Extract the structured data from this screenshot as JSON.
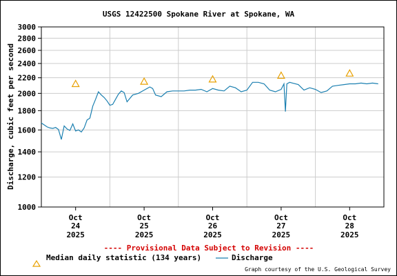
{
  "chart_data": {
    "type": "line",
    "title": "USGS 12422500 Spokane River at Spokane, WA",
    "ylabel": "Discharge, cubic feet per second",
    "xlabel": "",
    "y_scale": "log",
    "ylim": [
      1000,
      3000
    ],
    "y_ticks": [
      "3000",
      "2800",
      "2600",
      "2400",
      "2200",
      "2000",
      "1800",
      "1600",
      "1400",
      "1200",
      "1000"
    ],
    "x_range": [
      "2025-10-23 12:00",
      "2025-10-28 12:00"
    ],
    "x_ticks": [
      {
        "month": "Oct",
        "day": "24",
        "year": "2025"
      },
      {
        "month": "Oct",
        "day": "25",
        "year": "2025"
      },
      {
        "month": "Oct",
        "day": "26",
        "year": "2025"
      },
      {
        "month": "Oct",
        "day": "27",
        "year": "2025"
      },
      {
        "month": "Oct",
        "day": "28",
        "year": "2025"
      }
    ],
    "grid": true,
    "provisional_notice": "---- Provisional Data Subject to Revision ----",
    "credit": "Graph courtesy of the U.S. Geological Survey",
    "colors": {
      "discharge": "#1a7fb0",
      "median": "#e8a000",
      "grid": "#cccccc",
      "provisional": "#d40000"
    },
    "series": [
      {
        "name": "Discharge",
        "x": [
          "2025-10-23 12:00",
          "2025-10-23 13:00",
          "2025-10-23 14:00",
          "2025-10-23 15:00",
          "2025-10-23 16:00",
          "2025-10-23 17:00",
          "2025-10-23 18:00",
          "2025-10-23 19:00",
          "2025-10-23 20:00",
          "2025-10-23 21:00",
          "2025-10-23 22:00",
          "2025-10-23 23:00",
          "2025-10-24 00:00",
          "2025-10-24 01:00",
          "2025-10-24 02:00",
          "2025-10-24 03:00",
          "2025-10-24 04:00",
          "2025-10-24 05:00",
          "2025-10-24 06:00",
          "2025-10-24 07:00",
          "2025-10-24 08:00",
          "2025-10-24 09:00",
          "2025-10-24 10:00",
          "2025-10-24 11:00",
          "2025-10-24 12:00",
          "2025-10-24 13:00",
          "2025-10-24 14:00",
          "2025-10-24 15:00",
          "2025-10-24 16:00",
          "2025-10-24 17:00",
          "2025-10-24 18:00",
          "2025-10-24 20:00",
          "2025-10-24 22:00",
          "2025-10-25 00:00",
          "2025-10-25 02:00",
          "2025-10-25 03:00",
          "2025-10-25 04:00",
          "2025-10-25 06:00",
          "2025-10-25 08:00",
          "2025-10-25 10:00",
          "2025-10-25 12:00",
          "2025-10-25 13:00",
          "2025-10-25 14:00",
          "2025-10-25 16:00",
          "2025-10-25 18:00",
          "2025-10-25 20:00",
          "2025-10-25 22:00",
          "2025-10-26 00:00",
          "2025-10-26 02:00",
          "2025-10-26 04:00",
          "2025-10-26 06:00",
          "2025-10-26 08:00",
          "2025-10-26 10:00",
          "2025-10-26 12:00",
          "2025-10-26 14:00",
          "2025-10-26 16:00",
          "2025-10-26 18:00",
          "2025-10-26 20:00",
          "2025-10-26 22:00",
          "2025-10-27 00:00",
          "2025-10-27 01:00",
          "2025-10-27 01:30",
          "2025-10-27 02:00",
          "2025-10-27 03:00",
          "2025-10-27 04:00",
          "2025-10-27 06:00",
          "2025-10-27 08:00",
          "2025-10-27 10:00",
          "2025-10-27 12:00",
          "2025-10-27 14:00",
          "2025-10-27 16:00",
          "2025-10-27 18:00",
          "2025-10-27 20:00",
          "2025-10-27 22:00",
          "2025-10-28 00:00",
          "2025-10-28 02:00",
          "2025-10-28 04:00",
          "2025-10-28 06:00",
          "2025-10-28 08:00",
          "2025-10-28 10:00"
        ],
        "values": [
          1670,
          1650,
          1630,
          1620,
          1615,
          1625,
          1605,
          1510,
          1640,
          1610,
          1595,
          1660,
          1590,
          1600,
          1580,
          1620,
          1700,
          1720,
          1850,
          1930,
          2020,
          1980,
          1950,
          1910,
          1860,
          1870,
          1930,
          1990,
          2030,
          2010,
          1900,
          1980,
          2000,
          2040,
          2080,
          2060,
          1980,
          1960,
          2020,
          2030,
          2030,
          2030,
          2030,
          2040,
          2040,
          2050,
          2020,
          2060,
          2040,
          2030,
          2090,
          2070,
          2020,
          2040,
          2140,
          2140,
          2120,
          2040,
          2020,
          2050,
          2120,
          1790,
          2120,
          2140,
          2130,
          2110,
          2040,
          2070,
          2050,
          2010,
          2030,
          2090,
          2100,
          2110,
          2120,
          2120,
          2130,
          2120,
          2130,
          2120
        ]
      },
      {
        "name": "Median daily statistic (134 years)",
        "x": [
          "2025-10-24 00:00",
          "2025-10-25 00:00",
          "2025-10-26 00:00",
          "2025-10-27 00:00",
          "2025-10-28 00:00"
        ],
        "values": [
          2120,
          2150,
          2180,
          2230,
          2260
        ]
      }
    ]
  }
}
